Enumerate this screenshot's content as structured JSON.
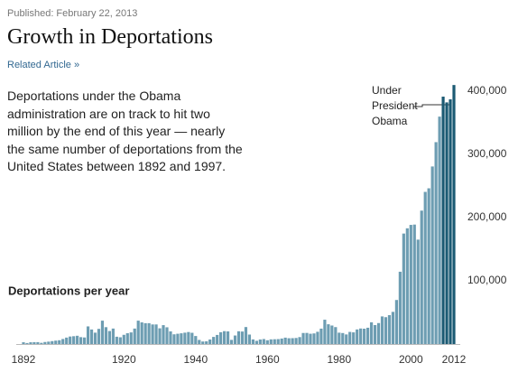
{
  "published": "Published: February 22, 2013",
  "title": "Growth in Deportations",
  "related": "Related Article »",
  "description": [
    "Deportations under the Obama",
    "administration are on track to hit two",
    "million by the end of this year — nearly",
    "the same number of deportations from the",
    "United States between 1892 and 1997."
  ],
  "chart_data": {
    "type": "bar",
    "title": "Deportations per year",
    "annotation": [
      "Under",
      "President",
      "Obama"
    ],
    "x": [
      1892,
      1893,
      1894,
      1895,
      1896,
      1897,
      1898,
      1899,
      1900,
      1901,
      1902,
      1903,
      1904,
      1905,
      1906,
      1907,
      1908,
      1909,
      1910,
      1911,
      1912,
      1913,
      1914,
      1915,
      1916,
      1917,
      1918,
      1919,
      1920,
      1921,
      1922,
      1923,
      1924,
      1925,
      1926,
      1927,
      1928,
      1929,
      1930,
      1931,
      1932,
      1933,
      1934,
      1935,
      1936,
      1937,
      1938,
      1939,
      1940,
      1941,
      1942,
      1943,
      1944,
      1945,
      1946,
      1947,
      1948,
      1949,
      1950,
      1951,
      1952,
      1953,
      1954,
      1955,
      1956,
      1957,
      1958,
      1959,
      1960,
      1961,
      1962,
      1963,
      1964,
      1965,
      1966,
      1967,
      1968,
      1969,
      1970,
      1971,
      1972,
      1973,
      1974,
      1975,
      1976,
      1977,
      1978,
      1979,
      1980,
      1981,
      1982,
      1983,
      1984,
      1985,
      1986,
      1987,
      1988,
      1989,
      1990,
      1991,
      1992,
      1993,
      1994,
      1995,
      1996,
      1997,
      1998,
      1999,
      2000,
      2001,
      2002,
      2003,
      2004,
      2005,
      2006,
      2007,
      2008,
      2009,
      2010,
      2011,
      2012
    ],
    "values": [
      2800,
      1600,
      2800,
      3000,
      3000,
      1900,
      3200,
      3800,
      4600,
      5400,
      6000,
      8000,
      10200,
      11900,
      12400,
      13100,
      10900,
      10400,
      27900,
      23000,
      18000,
      24000,
      37000,
      26700,
      20600,
      24500,
      11600,
      10700,
      14600,
      17100,
      18400,
      24500,
      37000,
      34300,
      33000,
      33000,
      31000,
      31000,
      24900,
      29900,
      26500,
      20000,
      15400,
      16300,
      17000,
      18000,
      19000,
      17800,
      12700,
      6500,
      4000,
      4300,
      7200,
      11300,
      14400,
      18700,
      20400,
      20000,
      6600,
      13500,
      20200,
      19800,
      26900,
      15000,
      7300,
      5100,
      7200,
      7900,
      6000,
      7400,
      7600,
      7800,
      8700,
      10100,
      9200,
      9300,
      9600,
      11000,
      17500,
      17600,
      16300,
      16800,
      19400,
      24400,
      38500,
      31300,
      29300,
      26800,
      18000,
      17400,
      15200,
      19200,
      18500,
      23100,
      24600,
      24300,
      25800,
      34400,
      30000,
      33200,
      43700,
      42500,
      45700,
      50900,
      69700,
      114400,
      174800,
      183100,
      188500,
      189000,
      165200,
      211100,
      240700,
      246400,
      280900,
      319400,
      359800,
      391400,
      382300,
      387100,
      409800
    ],
    "color": "#6d9db2",
    "highlight_color": "#1b5a73",
    "highlight_x": [
      2009,
      2012
    ],
    "xlim": [
      1892,
      2012
    ],
    "xticks": [
      1892,
      1920,
      1940,
      1960,
      1980,
      2000,
      2012
    ],
    "ylim": [
      0,
      400000
    ],
    "yticks": [
      {
        "value": 100000,
        "label": "100,000"
      },
      {
        "value": 200000,
        "label": "200,000"
      },
      {
        "value": 300000,
        "label": "300,000"
      },
      {
        "value": 400000,
        "label": "400,000"
      }
    ],
    "grid": false
  }
}
